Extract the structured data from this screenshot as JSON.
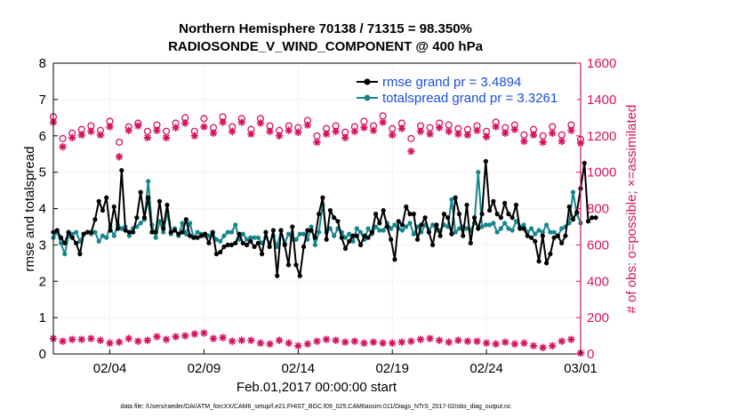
{
  "chart_data": {
    "type": "line",
    "title": "Northern Hemisphere 70138 / 71315 = 98.350%",
    "subtitle": "RADIOSONDE_V_WIND_COMPONENT @ 400 hPa",
    "xlabel": "Feb.01,2017 00:00:00 start",
    "ylabel": "rmse and totalspread",
    "ylabel_right": "# of obs: o=possible; ×=assimilated",
    "footnote": "data file: /Users/raeder/DAI/ATM_forcXX/CAM6_setup/f.e21.FHIST_BGC.f09_025.CAM6assim.011/Diags_NTrS_2017-02/obs_diag_output.nc",
    "xlim": [
      1.0,
      29.0
    ],
    "ylim": [
      0,
      8
    ],
    "ylim_right": [
      0,
      1600
    ],
    "xticks": [
      {
        "label": "02/04",
        "value": 4
      },
      {
        "label": "02/09",
        "value": 9
      },
      {
        "label": "02/14",
        "value": 14
      },
      {
        "label": "02/19",
        "value": 19
      },
      {
        "label": "02/24",
        "value": 24
      },
      {
        "label": "03/01",
        "value": 29
      }
    ],
    "yticks_left": [
      "0",
      "1",
      "2",
      "3",
      "4",
      "5",
      "6",
      "7",
      "8"
    ],
    "yticks_right": [
      "0",
      "200",
      "400",
      "600",
      "800",
      "1000",
      "1200",
      "1400",
      "1600"
    ],
    "grid": true,
    "legend_position": "top-right",
    "colors": {
      "rmse": "#000000",
      "spread": "#16858a",
      "obs": "#d6125f",
      "legend_text": "#1a4fdc"
    },
    "series": [
      {
        "name": "rmse grand pr = 3.4894",
        "axis": "left",
        "values": [
          3.35,
          3.4,
          3.2,
          3.05,
          3.35,
          3.2,
          3.05,
          2.75,
          3.3,
          3.35,
          3.35,
          3.7,
          4.2,
          3.95,
          4.3,
          3.4,
          4.05,
          3.45,
          5.05,
          3.4,
          3.35,
          3.35,
          3.75,
          4.45,
          3.75,
          4.3,
          3.35,
          3.35,
          4.2,
          3.45,
          4.1,
          3.35,
          3.4,
          3.3,
          3.35,
          3.7,
          3.25,
          3.2,
          3.2,
          3.25,
          3.3,
          3.05,
          3.35,
          2.75,
          2.8,
          2.95,
          3.0,
          3.0,
          3.05,
          3.3,
          3.05,
          3.0,
          3.1,
          2.95,
          3.05,
          2.75,
          3.35,
          2.95,
          3.4,
          2.15,
          3.4,
          3.0,
          2.45,
          3.5,
          2.45,
          2.15,
          2.95,
          3.4,
          3.4,
          3.2,
          3.85,
          4.3,
          3.15,
          3.95,
          3.75,
          3.65,
          3.2,
          2.9,
          3.1,
          3.25,
          3.25,
          3.0,
          3.25,
          3.2,
          3.35,
          3.85,
          3.6,
          3.95,
          3.5,
          3.15,
          2.6,
          3.65,
          3.55,
          4.05,
          3.85,
          3.85,
          3.15,
          3.55,
          3.75,
          3.35,
          3.0,
          3.55,
          3.25,
          3.85,
          3.75,
          3.3,
          4.3,
          3.85,
          3.25,
          4.1,
          3.05,
          3.75,
          3.45,
          3.85,
          5.3,
          3.95,
          4.2,
          3.85,
          3.75,
          4.15,
          3.85,
          3.75,
          4.1,
          3.45,
          3.45,
          3.25,
          3.2,
          3.1,
          2.55,
          3.25,
          2.5,
          2.75,
          3.2,
          3.25,
          3.05,
          3.25,
          4.05,
          3.7,
          3.9,
          4.55,
          5.25,
          3.65,
          3.75,
          3.75
        ]
      },
      {
        "name": "totalspread grand pr = 3.3261",
        "axis": "left",
        "values": [
          3.2,
          3.35,
          3.05,
          2.75,
          3.25,
          3.3,
          3.35,
          3.1,
          3.3,
          3.35,
          3.3,
          3.35,
          3.1,
          3.25,
          3.2,
          3.5,
          3.25,
          3.55,
          3.45,
          3.5,
          3.25,
          3.45,
          3.5,
          3.6,
          3.7,
          4.75,
          3.55,
          3.2,
          3.65,
          3.35,
          3.9,
          3.3,
          3.45,
          3.25,
          3.6,
          3.3,
          3.6,
          3.2,
          3.35,
          3.3,
          3.25,
          3.25,
          3.3,
          3.15,
          3.1,
          3.25,
          3.35,
          3.35,
          3.55,
          3.15,
          3.3,
          3.15,
          3.2,
          3.2,
          3.2,
          3.05,
          3.2,
          3.05,
          3.25,
          2.95,
          3.4,
          3.05,
          3.3,
          3.15,
          3.15,
          3.3,
          3.3,
          3.15,
          3.5,
          3.0,
          3.35,
          4.1,
          3.35,
          3.45,
          3.25,
          3.45,
          3.35,
          3.2,
          3.3,
          3.1,
          3.45,
          3.35,
          3.15,
          3.45,
          3.3,
          3.5,
          3.4,
          3.4,
          3.6,
          3.45,
          3.55,
          3.45,
          3.4,
          3.5,
          3.6,
          3.3,
          3.5,
          3.35,
          3.55,
          3.4,
          3.55,
          3.4,
          3.4,
          3.55,
          3.5,
          4.25,
          3.35,
          3.45,
          3.5,
          3.45,
          3.4,
          3.6,
          5.0,
          3.5,
          3.55,
          3.55,
          3.6,
          3.35,
          3.45,
          3.6,
          3.45,
          3.4,
          3.65,
          3.5,
          3.55,
          3.35,
          3.45,
          3.3,
          3.4,
          3.35,
          3.55,
          3.35,
          3.35,
          3.25,
          3.45,
          3.5,
          3.6,
          4.45,
          3.85,
          3.6
        ]
      },
      {
        "name": "possible",
        "axis": "right",
        "marker": "circle",
        "points": [
          [
            1.0,
            1305
          ],
          [
            1.5,
            1185
          ],
          [
            2.0,
            1215
          ],
          [
            2.5,
            1235
          ],
          [
            3.0,
            1255
          ],
          [
            3.5,
            1230
          ],
          [
            4.0,
            1280
          ],
          [
            4.5,
            1165
          ],
          [
            5.0,
            1250
          ],
          [
            5.5,
            1270
          ],
          [
            6.0,
            1225
          ],
          [
            6.5,
            1260
          ],
          [
            7.0,
            1225
          ],
          [
            7.5,
            1270
          ],
          [
            8.0,
            1300
          ],
          [
            8.5,
            1225
          ],
          [
            9.0,
            1295
          ],
          [
            9.5,
            1245
          ],
          [
            10.0,
            1305
          ],
          [
            10.5,
            1250
          ],
          [
            11.0,
            1295
          ],
          [
            11.5,
            1235
          ],
          [
            12.0,
            1295
          ],
          [
            12.5,
            1255
          ],
          [
            13.0,
            1230
          ],
          [
            13.5,
            1255
          ],
          [
            14.0,
            1245
          ],
          [
            14.5,
            1285
          ],
          [
            15.0,
            1200
          ],
          [
            15.5,
            1240
          ],
          [
            16.0,
            1255
          ],
          [
            16.5,
            1220
          ],
          [
            17.0,
            1250
          ],
          [
            17.5,
            1280
          ],
          [
            18.0,
            1255
          ],
          [
            18.5,
            1310
          ],
          [
            19.0,
            1240
          ],
          [
            19.5,
            1270
          ],
          [
            20.0,
            1185
          ],
          [
            20.5,
            1255
          ],
          [
            21.0,
            1245
          ],
          [
            21.5,
            1270
          ],
          [
            22.0,
            1260
          ],
          [
            22.5,
            1240
          ],
          [
            23.0,
            1235
          ],
          [
            23.5,
            1255
          ],
          [
            24.0,
            1225
          ],
          [
            24.5,
            1275
          ],
          [
            25.0,
            1245
          ],
          [
            25.5,
            1260
          ],
          [
            26.0,
            1205
          ],
          [
            26.5,
            1235
          ],
          [
            27.0,
            1200
          ],
          [
            27.5,
            1250
          ],
          [
            28.0,
            1205
          ],
          [
            28.5,
            1260
          ],
          [
            29.0,
            1180
          ]
        ]
      },
      {
        "name": "assimilated",
        "axis": "right",
        "marker": "star",
        "points": [
          [
            1.0,
            1275
          ],
          [
            1.5,
            1140
          ],
          [
            2.0,
            1190
          ],
          [
            2.5,
            1205
          ],
          [
            3.0,
            1225
          ],
          [
            3.5,
            1205
          ],
          [
            4.0,
            1250
          ],
          [
            4.5,
            1085
          ],
          [
            5.0,
            1230
          ],
          [
            5.5,
            1255
          ],
          [
            6.0,
            1190
          ],
          [
            6.5,
            1230
          ],
          [
            7.0,
            1190
          ],
          [
            7.5,
            1245
          ],
          [
            8.0,
            1270
          ],
          [
            8.5,
            1200
          ],
          [
            9.0,
            1250
          ],
          [
            9.5,
            1215
          ],
          [
            10.0,
            1275
          ],
          [
            10.5,
            1225
          ],
          [
            11.0,
            1275
          ],
          [
            11.5,
            1210
          ],
          [
            12.0,
            1270
          ],
          [
            12.5,
            1225
          ],
          [
            13.0,
            1200
          ],
          [
            13.5,
            1230
          ],
          [
            14.0,
            1220
          ],
          [
            14.5,
            1260
          ],
          [
            15.0,
            1165
          ],
          [
            15.5,
            1210
          ],
          [
            16.0,
            1225
          ],
          [
            16.5,
            1190
          ],
          [
            17.0,
            1225
          ],
          [
            17.5,
            1245
          ],
          [
            18.0,
            1230
          ],
          [
            18.5,
            1275
          ],
          [
            19.0,
            1205
          ],
          [
            19.5,
            1240
          ],
          [
            20.0,
            1115
          ],
          [
            20.5,
            1225
          ],
          [
            21.0,
            1210
          ],
          [
            21.5,
            1245
          ],
          [
            22.0,
            1225
          ],
          [
            22.5,
            1210
          ],
          [
            23.0,
            1205
          ],
          [
            23.5,
            1230
          ],
          [
            24.0,
            1195
          ],
          [
            24.5,
            1250
          ],
          [
            25.0,
            1215
          ],
          [
            25.5,
            1235
          ],
          [
            26.0,
            1170
          ],
          [
            26.5,
            1205
          ],
          [
            27.0,
            1165
          ],
          [
            27.5,
            1215
          ],
          [
            28.0,
            1170
          ],
          [
            28.5,
            1230
          ],
          [
            29.0,
            1160
          ]
        ]
      },
      {
        "name": "assimilated-low",
        "axis": "right",
        "marker": "star",
        "points": [
          [
            1.0,
            85
          ],
          [
            1.5,
            70
          ],
          [
            2.0,
            80
          ],
          [
            2.5,
            80
          ],
          [
            3.0,
            85
          ],
          [
            3.5,
            75
          ],
          [
            4.0,
            60
          ],
          [
            4.5,
            65
          ],
          [
            5.0,
            85
          ],
          [
            5.5,
            70
          ],
          [
            6.0,
            75
          ],
          [
            6.5,
            95
          ],
          [
            7.0,
            80
          ],
          [
            7.5,
            95
          ],
          [
            8.0,
            100
          ],
          [
            8.5,
            110
          ],
          [
            9.0,
            115
          ],
          [
            9.5,
            85
          ],
          [
            10.0,
            90
          ],
          [
            10.5,
            70
          ],
          [
            11.0,
            75
          ],
          [
            11.5,
            75
          ],
          [
            12.0,
            60
          ],
          [
            12.5,
            55
          ],
          [
            13.0,
            75
          ],
          [
            13.5,
            60
          ],
          [
            14.0,
            45
          ],
          [
            14.5,
            55
          ],
          [
            15.0,
            70
          ],
          [
            15.5,
            80
          ],
          [
            16.0,
            75
          ],
          [
            16.5,
            65
          ],
          [
            17.0,
            70
          ],
          [
            17.5,
            60
          ],
          [
            18.0,
            65
          ],
          [
            18.5,
            60
          ],
          [
            19.0,
            60
          ],
          [
            19.5,
            65
          ],
          [
            20.0,
            70
          ],
          [
            20.5,
            80
          ],
          [
            21.0,
            85
          ],
          [
            21.5,
            75
          ],
          [
            22.0,
            65
          ],
          [
            22.5,
            75
          ],
          [
            23.0,
            70
          ],
          [
            23.5,
            70
          ],
          [
            24.0,
            60
          ],
          [
            24.5,
            55
          ],
          [
            25.0,
            65
          ],
          [
            25.5,
            55
          ],
          [
            26.0,
            60
          ],
          [
            26.5,
            45
          ],
          [
            27.0,
            35
          ],
          [
            27.5,
            45
          ],
          [
            28.0,
            70
          ],
          [
            28.5,
            80
          ],
          [
            29.0,
            5
          ]
        ]
      }
    ]
  }
}
